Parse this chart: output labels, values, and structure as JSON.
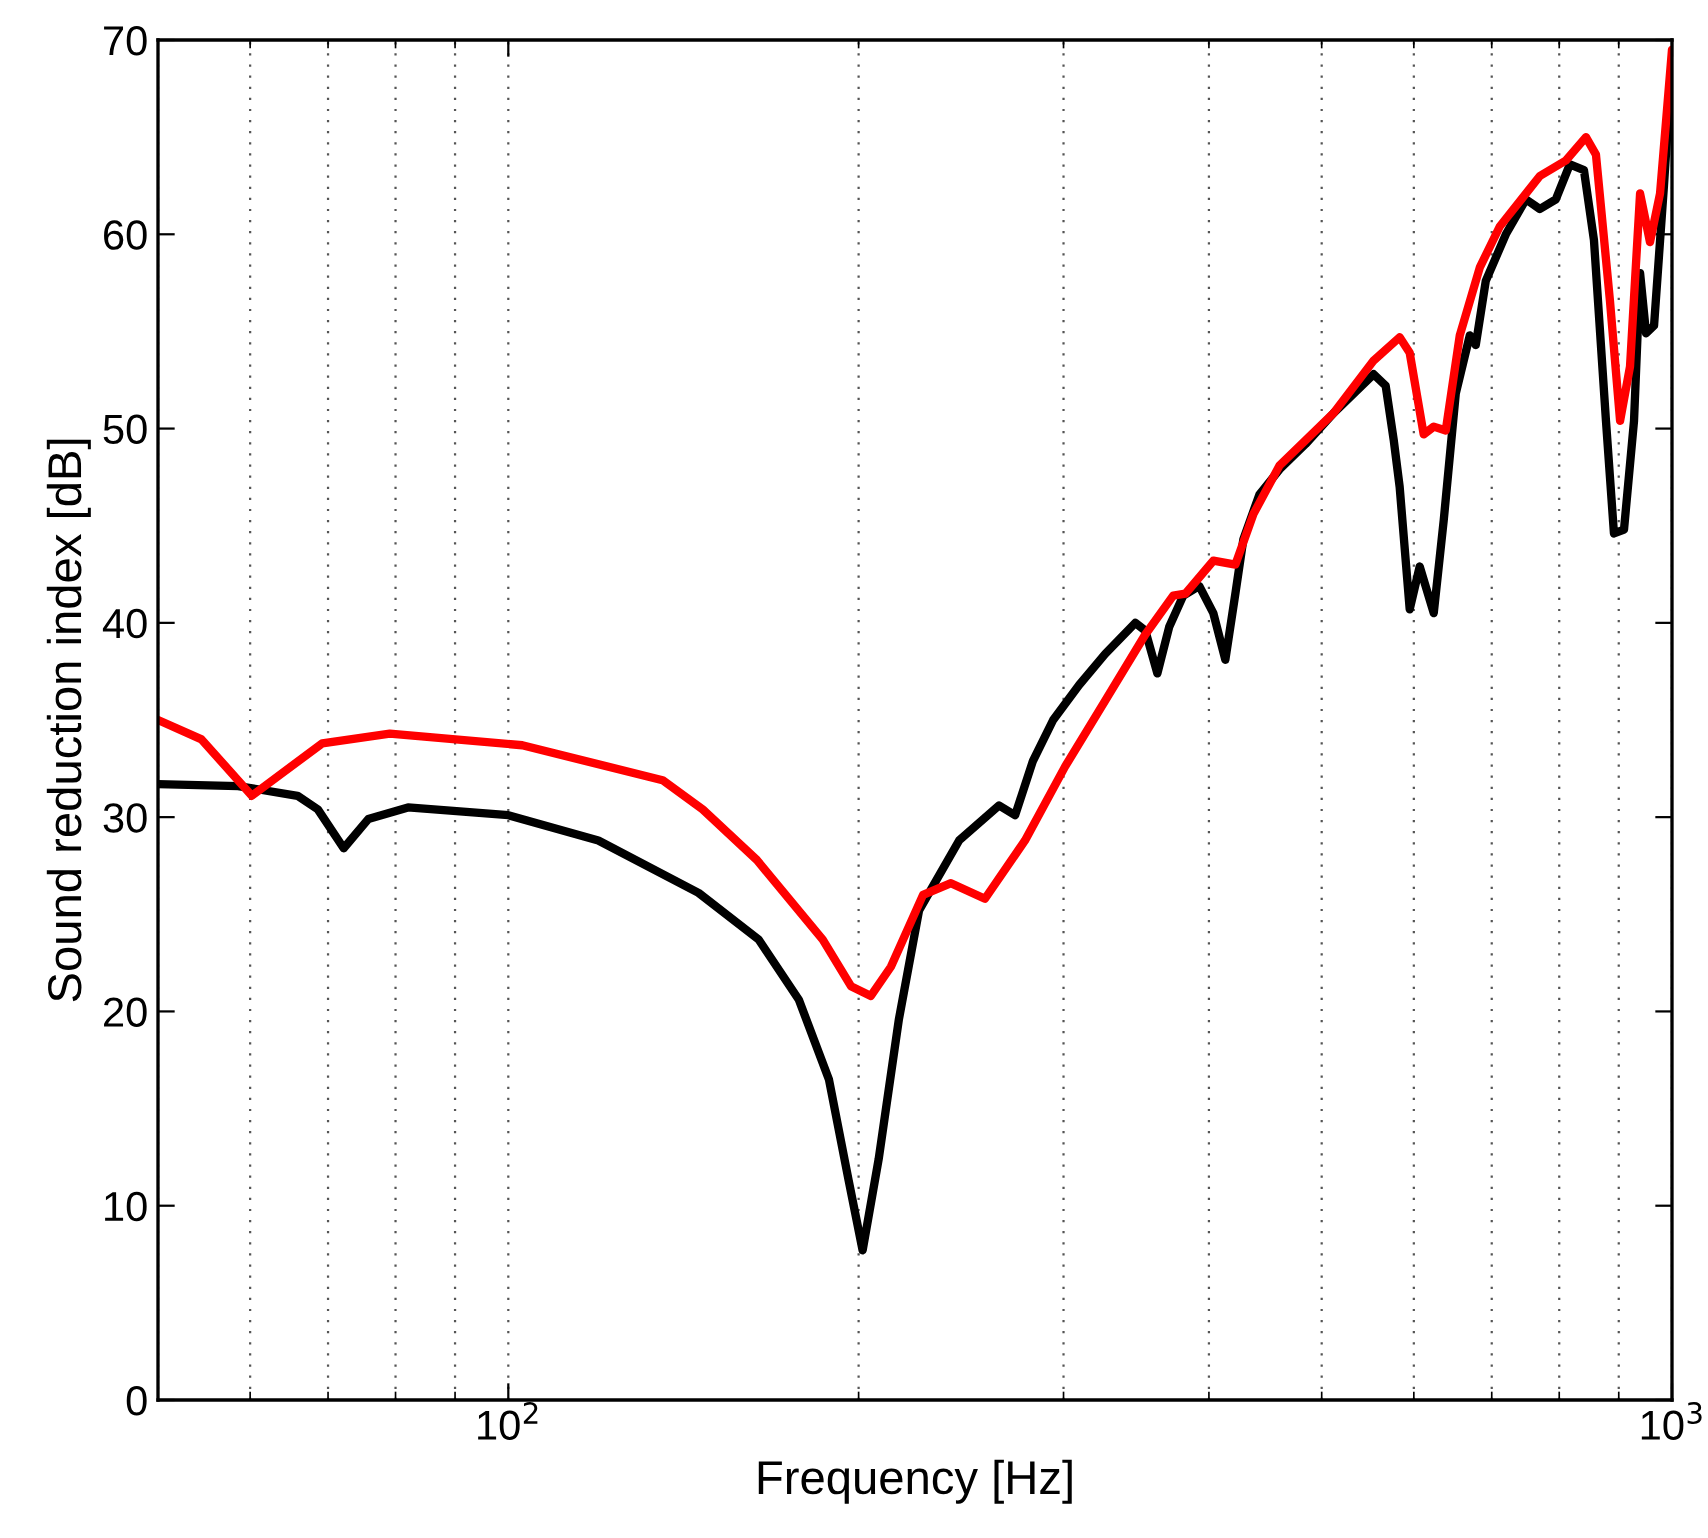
{
  "chart_data": {
    "type": "line",
    "xlabel": "Frequency [Hz]",
    "ylabel": "Sound reduction index [dB]",
    "log": "x",
    "grid": "x",
    "xlim": [
      50,
      1000
    ],
    "ylim": [
      0,
      70
    ],
    "xticks": [
      {
        "value": 100,
        "label": "10$^{2}$"
      },
      {
        "value": 1000,
        "label": "10$^{3}$"
      }
    ],
    "yticks": [
      0,
      10,
      20,
      30,
      40,
      50,
      60,
      70
    ],
    "series": [
      {
        "color": "#000000",
        "x": [
          50,
          58.6,
          65.9,
          68.6,
          72.2,
          75.8,
          82.0,
          100,
          119.5,
          145.7,
          164.1,
          177.7,
          188.6,
          196.1,
          201.6,
          208.1,
          216.6,
          225.4,
          244.0,
          264.1,
          272.6,
          282.4,
          293.9,
          309.4,
          325.8,
          345.8,
          352.7,
          361.2,
          369.8,
          380.2,
          392.4,
          403.5,
          413.2,
          421.5,
          428.2,
          442.0,
          460.0,
          484.2,
          512.0,
          554.1,
          567.5,
          576.6,
          583.4,
          595.1,
          607.0,
          624.1,
          636.6,
          651.9,
          670.3,
          678.2,
          691.8,
          719.8,
          748.9,
          769.9,
          794.7,
          817.0,
          840.1,
          856.9,
          877.5,
          891.5,
          909.4,
          927.6,
          938.8,
          949.9,
          965.1,
          984.2,
          1000
        ],
        "values": [
          31.7,
          31.6,
          31.1,
          30.4,
          28.4,
          29.9,
          30.5,
          30.1,
          28.8,
          26.1,
          23.7,
          20.6,
          16.5,
          11.3,
          7.7,
          12.4,
          19.6,
          25.2,
          28.8,
          30.6,
          30.1,
          32.9,
          35.0,
          36.8,
          38.4,
          40.0,
          39.6,
          37.4,
          39.8,
          41.4,
          41.9,
          40.5,
          38.1,
          41.5,
          44.3,
          46.6,
          47.9,
          49.2,
          50.8,
          52.8,
          52.2,
          49.4,
          47.0,
          40.7,
          42.9,
          40.5,
          45.3,
          51.8,
          54.8,
          54.3,
          57.6,
          60.0,
          61.8,
          61.3,
          61.8,
          63.6,
          63.3,
          59.7,
          50.4,
          44.6,
          44.8,
          50.4,
          58.0,
          54.9,
          55.3,
          62.5,
          69.0
        ]
      },
      {
        "color": "#ff0000",
        "x": [
          50,
          54.5,
          60.2,
          69.2,
          79.1,
          102.8,
          135.7,
          146.9,
          163.5,
          186.3,
          197.0,
          204.9,
          213.2,
          227.2,
          240.1,
          256.8,
          278.0,
          300.9,
          325.8,
          352.7,
          372.7,
          381.8,
          403.5,
          421.5,
          436.8,
          460.0,
          512.0,
          554.1,
          583.4,
          595.1,
          611.8,
          624.1,
          639.1,
          657.1,
          683.7,
          711.2,
          769.9,
          810.6,
          843.4,
          860.3,
          884.4,
          902.4,
          920.3,
          938.8,
          957.4,
          976.6,
          1000
        ],
        "values": [
          35.0,
          34.0,
          31.1,
          33.8,
          34.3,
          33.7,
          31.9,
          30.4,
          27.8,
          23.7,
          21.3,
          20.8,
          22.3,
          26.0,
          26.6,
          25.8,
          28.8,
          32.6,
          36.0,
          39.4,
          41.4,
          41.5,
          43.2,
          43.0,
          45.6,
          48.1,
          50.8,
          53.5,
          54.7,
          53.9,
          49.7,
          50.1,
          49.9,
          54.8,
          58.3,
          60.4,
          63.0,
          63.8,
          65.0,
          64.1,
          56.6,
          50.4,
          53.2,
          62.1,
          59.6,
          62.1,
          69.5
        ]
      }
    ]
  }
}
